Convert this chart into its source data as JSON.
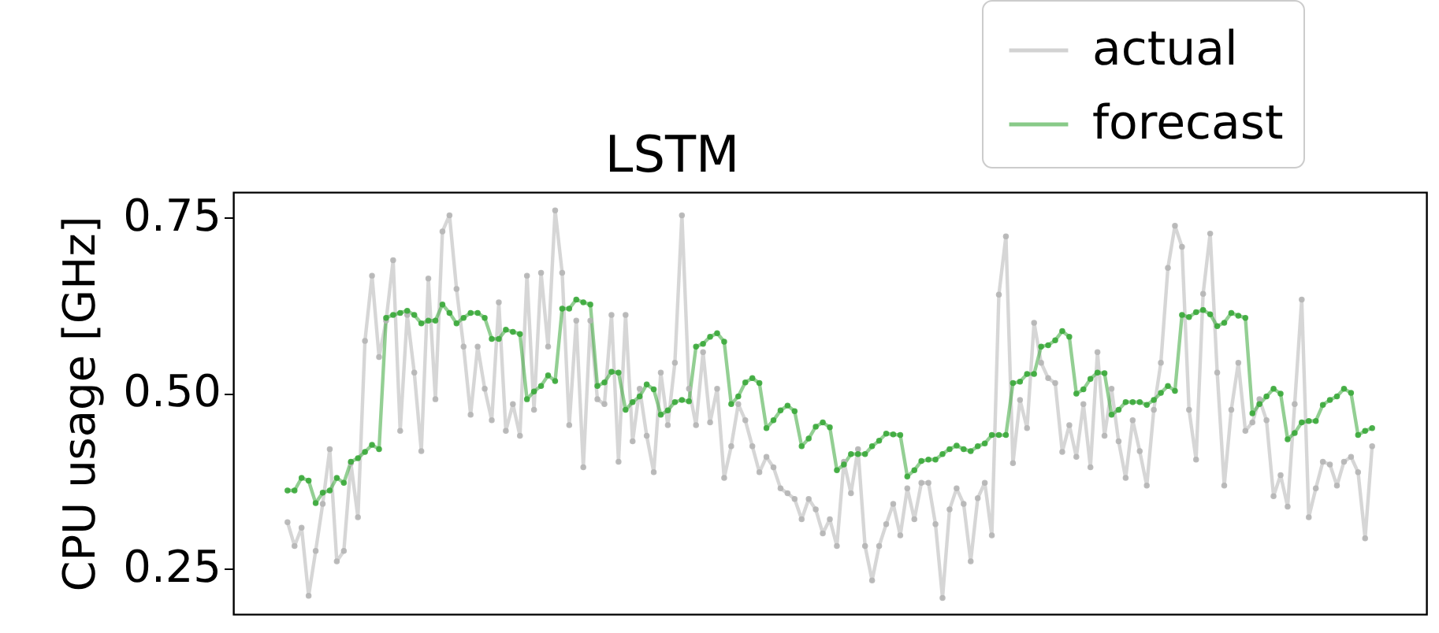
{
  "chart_data": {
    "type": "line",
    "title": "LSTM",
    "ylabel": "CPU usage [GHz]",
    "categories": [
      null,
      null,
      null,
      null,
      null,
      null,
      null,
      null,
      null,
      null,
      null,
      null,
      null,
      null,
      null,
      null,
      null,
      null,
      null,
      null,
      null,
      null,
      null,
      null,
      null,
      null,
      null,
      null,
      null,
      null,
      null,
      null,
      null,
      null,
      null,
      null,
      null,
      null,
      null,
      null,
      null,
      null,
      null,
      null,
      null,
      null,
      null,
      null,
      null,
      null,
      null,
      null,
      null,
      null,
      null,
      null,
      null,
      null,
      null,
      null,
      null,
      null,
      null,
      null,
      null,
      null,
      null,
      null,
      null,
      null,
      null,
      null,
      null,
      null,
      null,
      null,
      null,
      null,
      null,
      null,
      null,
      null,
      null,
      null,
      null,
      null,
      null,
      null,
      null,
      null,
      null,
      null,
      null,
      null,
      null,
      null,
      null,
      null,
      null,
      null,
      null,
      null,
      null,
      null,
      null,
      null,
      null,
      null,
      null,
      null,
      null,
      null,
      null,
      null,
      null,
      null,
      null,
      null,
      null,
      null,
      null,
      null,
      null,
      null,
      null,
      null,
      null,
      null,
      null,
      null,
      null,
      null,
      null,
      null,
      null,
      null,
      null,
      null,
      null,
      null,
      null,
      null,
      null,
      null,
      null,
      null,
      null,
      null,
      null,
      null,
      null,
      null,
      null,
      null,
      null
    ],
    "series": [
      {
        "name": "actual",
        "color": "#b5b5b5",
        "values": [
          0.316,
          0.282,
          0.308,
          0.211,
          0.275,
          0.342,
          0.42,
          0.26,
          0.275,
          0.4,
          0.323,
          0.574,
          0.667,
          0.551,
          0.603,
          0.689,
          0.446,
          0.611,
          0.529,
          0.417,
          0.663,
          0.491,
          0.73,
          0.753,
          0.648,
          0.566,
          0.469,
          0.566,
          0.506,
          0.461,
          0.629,
          0.446,
          0.484,
          0.439,
          0.667,
          0.476,
          0.671,
          0.566,
          0.76,
          0.671,
          0.454,
          0.603,
          0.394,
          0.603,
          0.491,
          0.484,
          0.611,
          0.402,
          0.611,
          0.431,
          0.506,
          0.439,
          0.387,
          0.529,
          0.454,
          0.543,
          0.753,
          0.506,
          0.454,
          0.558,
          0.458,
          0.506,
          0.379,
          0.424,
          0.484,
          0.461,
          0.424,
          0.387,
          0.409,
          0.394,
          0.364,
          0.357,
          0.349,
          0.32,
          0.349,
          0.334,
          0.3,
          0.32,
          0.282,
          0.402,
          0.357,
          0.42,
          0.282,
          0.233,
          0.282,
          0.313,
          0.342,
          0.297,
          0.364,
          0.32,
          0.372,
          0.372,
          0.313,
          0.208,
          0.334,
          0.364,
          0.342,
          0.26,
          0.35,
          0.372,
          0.297,
          0.64,
          0.723,
          0.4,
          0.49,
          0.45,
          0.6,
          0.543,
          0.521,
          0.514,
          0.416,
          0.454,
          0.409,
          0.484,
          0.394,
          0.558,
          0.439,
          0.506,
          0.431,
          0.379,
          0.461,
          0.417,
          0.368,
          0.476,
          0.543,
          0.678,
          0.738,
          0.708,
          0.476,
          0.405,
          0.641,
          0.727,
          0.529,
          0.368,
          0.476,
          0.543,
          0.446,
          0.458,
          0.491,
          0.461,
          0.353,
          0.383,
          0.338,
          0.484,
          0.633,
          0.323,
          0.364,
          0.402,
          0.398,
          0.368,
          0.402,
          0.409,
          0.387,
          0.293,
          0.424
        ]
      },
      {
        "name": "forecast",
        "color": "#3aa83a",
        "values": [
          0.361,
          0.361,
          0.379,
          0.375,
          0.343,
          0.358,
          0.361,
          0.379,
          0.372,
          0.402,
          0.407,
          0.416,
          0.426,
          0.42,
          0.607,
          0.611,
          0.614,
          0.617,
          0.611,
          0.599,
          0.603,
          0.603,
          0.626,
          0.614,
          0.599,
          0.607,
          0.614,
          0.614,
          0.607,
          0.577,
          0.577,
          0.59,
          0.587,
          0.584,
          0.491,
          0.502,
          0.51,
          0.525,
          0.517,
          0.62,
          0.62,
          0.633,
          0.629,
          0.626,
          0.51,
          0.515,
          0.53,
          0.529,
          0.476,
          0.487,
          0.495,
          0.512,
          0.505,
          0.469,
          0.475,
          0.487,
          0.49,
          0.488,
          0.566,
          0.57,
          0.58,
          0.585,
          0.573,
          0.484,
          0.495,
          0.515,
          0.521,
          0.514,
          0.45,
          0.461,
          0.475,
          0.482,
          0.474,
          0.424,
          0.435,
          0.452,
          0.458,
          0.451,
          0.39,
          0.398,
          0.413,
          0.413,
          0.413,
          0.424,
          0.432,
          0.442,
          0.441,
          0.44,
          0.381,
          0.39,
          0.403,
          0.405,
          0.405,
          0.413,
          0.42,
          0.425,
          0.42,
          0.417,
          0.424,
          0.428,
          0.44,
          0.44,
          0.44,
          0.514,
          0.516,
          0.527,
          0.527,
          0.566,
          0.568,
          0.575,
          0.588,
          0.58,
          0.499,
          0.505,
          0.52,
          0.529,
          0.528,
          0.469,
          0.476,
          0.487,
          0.487,
          0.487,
          0.483,
          0.49,
          0.5,
          0.51,
          0.503,
          0.611,
          0.608,
          0.615,
          0.618,
          0.612,
          0.595,
          0.6,
          0.614,
          0.61,
          0.607,
          0.471,
          0.484,
          0.495,
          0.506,
          0.499,
          0.434,
          0.443,
          0.458,
          0.46,
          0.46,
          0.483,
          0.49,
          0.495,
          0.506,
          0.5,
          0.44,
          0.446,
          0.45
        ]
      }
    ],
    "ylim": [
      0.185,
      0.786
    ],
    "yticks": [
      0.25,
      {
        "value": 0.5,
        "label": "0.50"
      },
      0.75
    ],
    "tick_labels": "y",
    "grid": false,
    "legend": "top right",
    "marker": "circle",
    "line_style": "solid"
  }
}
